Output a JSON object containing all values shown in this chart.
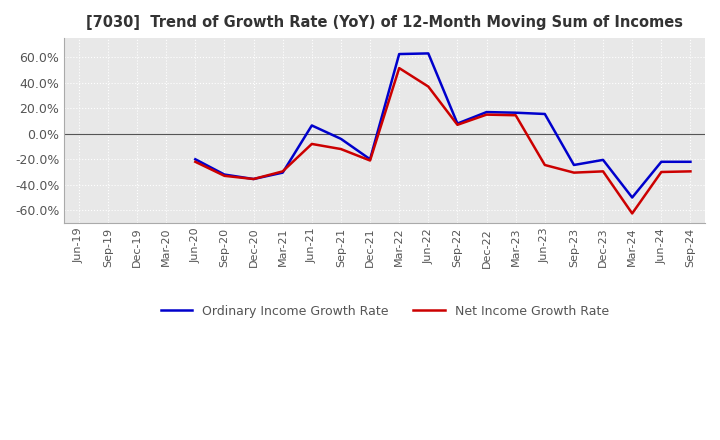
{
  "title": "[7030]  Trend of Growth Rate (YoY) of 12-Month Moving Sum of Incomes",
  "ylim": [
    -0.7,
    0.75
  ],
  "yticks": [
    -0.6,
    -0.4,
    -0.2,
    0.0,
    0.2,
    0.4,
    0.6
  ],
  "ytick_labels": [
    "-60.0%",
    "-40.0%",
    "-20.0%",
    "0.0%",
    "20.0%",
    "40.0%",
    "60.0%"
  ],
  "background_color": "#ffffff",
  "plot_background_color": "#e8e8e8",
  "grid_color": "#ffffff",
  "ordinary_color": "#0000cc",
  "net_color": "#cc0000",
  "legend_ordinary": "Ordinary Income Growth Rate",
  "legend_net": "Net Income Growth Rate",
  "x_labels": [
    "Jun-19",
    "Sep-19",
    "Dec-19",
    "Mar-20",
    "Jun-20",
    "Sep-20",
    "Dec-20",
    "Mar-21",
    "Jun-21",
    "Sep-21",
    "Dec-21",
    "Mar-22",
    "Jun-22",
    "Sep-22",
    "Dec-22",
    "Mar-23",
    "Jun-23",
    "Sep-23",
    "Dec-23",
    "Mar-24",
    "Jun-24",
    "Sep-24"
  ],
  "ordinary_income_growth": [
    null,
    null,
    null,
    null,
    -0.2,
    -0.32,
    -0.355,
    -0.305,
    0.065,
    -0.04,
    -0.2,
    0.625,
    0.63,
    0.08,
    0.17,
    0.165,
    0.155,
    -0.245,
    -0.205,
    -0.5,
    -0.22,
    -0.22
  ],
  "net_income_growth": [
    null,
    null,
    null,
    null,
    -0.22,
    -0.33,
    -0.355,
    -0.295,
    -0.08,
    -0.12,
    -0.21,
    0.515,
    0.37,
    0.07,
    0.15,
    0.145,
    -0.245,
    -0.305,
    -0.295,
    -0.625,
    -0.3,
    -0.295
  ]
}
